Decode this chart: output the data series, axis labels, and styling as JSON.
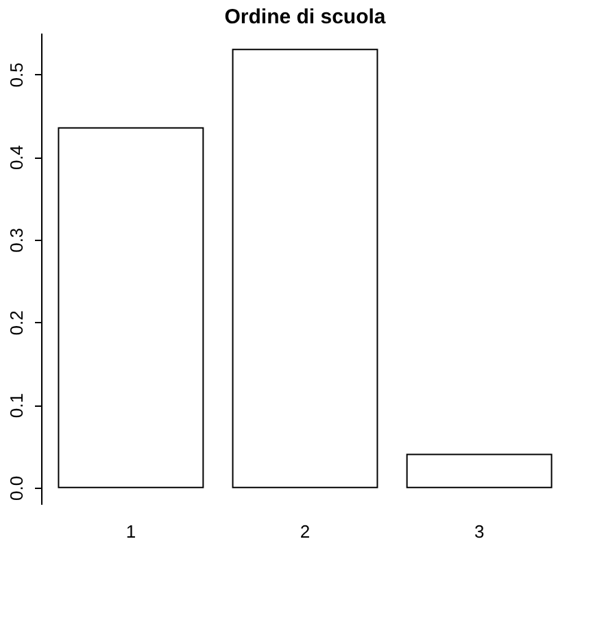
{
  "chart_data": {
    "type": "bar",
    "title": "Ordine di scuola",
    "categories": [
      "1",
      "2",
      "3"
    ],
    "values": [
      0.435,
      0.53,
      0.04
    ],
    "color": "#ffffff",
    "ylim": [
      -0.02,
      0.55
    ],
    "yticks": [
      {
        "value": 0,
        "label": "0.0"
      },
      0.1,
      0.2,
      0.3,
      0.4,
      0.5
    ],
    "grid": false
  }
}
